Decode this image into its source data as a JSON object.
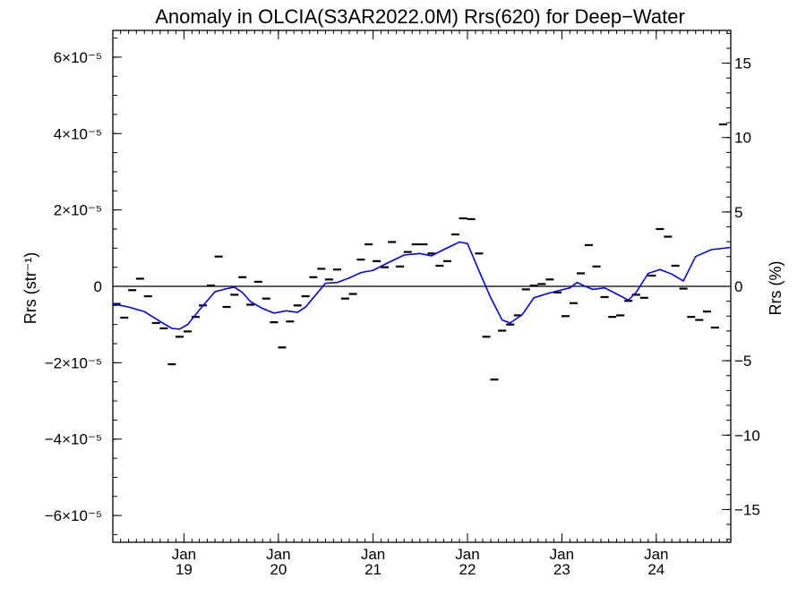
{
  "chart_data": {
    "type": "line",
    "title": "Anomaly in OLCIA(S3AR2022.0M) Rrs(620) for Deep−Water",
    "ylabel_left": "Rrs (str⁻¹)",
    "ylabel_right": "Rrs (%)",
    "x_range": [
      "2018-04-01",
      "2024-10-15"
    ],
    "y_range_left": [
      -6.7e-05,
      6.7e-05
    ],
    "y_range_right": [
      -17.2,
      17.2
    ],
    "left_ticks": [
      {
        "value": 6e-05,
        "label": "6×10⁻⁵"
      },
      {
        "value": 4e-05,
        "label": "4×10⁻⁵"
      },
      {
        "value": 2e-05,
        "label": "2×10⁻⁵"
      },
      {
        "value": 0,
        "label": "0"
      },
      {
        "value": -2e-05,
        "label": "−2×10⁻⁵"
      },
      {
        "value": -4e-05,
        "label": "−4×10⁻⁵"
      },
      {
        "value": -6e-05,
        "label": "−6×10⁻⁵"
      }
    ],
    "right_ticks": [
      {
        "value": 15,
        "label": "15"
      },
      {
        "value": 10,
        "label": "10"
      },
      {
        "value": 5,
        "label": "5"
      },
      {
        "value": 0,
        "label": "0"
      },
      {
        "value": -5,
        "label": "−5"
      },
      {
        "value": -10,
        "label": "−10"
      },
      {
        "value": -15,
        "label": "−15"
      }
    ],
    "x_ticks": [
      {
        "date": "2019-01-01",
        "month": "Jan",
        "year": "19"
      },
      {
        "date": "2020-01-01",
        "month": "Jan",
        "year": "20"
      },
      {
        "date": "2021-01-01",
        "month": "Jan",
        "year": "21"
      },
      {
        "date": "2022-01-01",
        "month": "Jan",
        "year": "22"
      },
      {
        "date": "2023-01-01",
        "month": "Jan",
        "year": "23"
      },
      {
        "date": "2024-01-01",
        "month": "Jan",
        "year": "24"
      }
    ],
    "series": [
      {
        "style": "dash-markers",
        "color": "#000000",
        "points": [
          [
            "2018-04-15",
            -4.6e-06
          ],
          [
            "2018-05-15",
            -8.2e-06
          ],
          [
            "2018-06-15",
            -1e-06
          ],
          [
            "2018-07-15",
            2e-06
          ],
          [
            "2018-08-15",
            -2.6e-06
          ],
          [
            "2018-09-15",
            -9.6e-06
          ],
          [
            "2018-10-15",
            -1.1e-05
          ],
          [
            "2018-11-15",
            -2.04e-05
          ],
          [
            "2018-12-15",
            -1.32e-05
          ],
          [
            "2019-01-15",
            -1.18e-05
          ],
          [
            "2019-02-15",
            -8e-06
          ],
          [
            "2019-03-15",
            -5e-06
          ],
          [
            "2019-04-15",
            2e-07
          ],
          [
            "2019-05-15",
            7.8e-06
          ],
          [
            "2019-06-15",
            -5.4e-06
          ],
          [
            "2019-07-15",
            -2.2e-06
          ],
          [
            "2019-08-15",
            2.4e-06
          ],
          [
            "2019-09-15",
            -4.8e-06
          ],
          [
            "2019-10-15",
            1.2e-06
          ],
          [
            "2019-11-15",
            -3.2e-06
          ],
          [
            "2019-12-15",
            -9.4e-06
          ],
          [
            "2020-01-15",
            -1.6e-05
          ],
          [
            "2020-02-15",
            -9.2e-06
          ],
          [
            "2020-03-15",
            -5e-06
          ],
          [
            "2020-04-15",
            -2.6e-06
          ],
          [
            "2020-05-15",
            2.4e-06
          ],
          [
            "2020-06-15",
            4.6e-06
          ],
          [
            "2020-07-15",
            1.8e-06
          ],
          [
            "2020-08-15",
            4.4e-06
          ],
          [
            "2020-09-15",
            -3.2e-06
          ],
          [
            "2020-10-15",
            -2e-06
          ],
          [
            "2020-11-15",
            7e-06
          ],
          [
            "2020-12-15",
            1.1e-05
          ],
          [
            "2021-01-15",
            6.6e-06
          ],
          [
            "2021-02-15",
            5e-06
          ],
          [
            "2021-03-15",
            1.16e-05
          ],
          [
            "2021-04-15",
            5.2e-06
          ],
          [
            "2021-05-15",
            9e-06
          ],
          [
            "2021-06-15",
            1.1e-05
          ],
          [
            "2021-07-15",
            1.1e-05
          ],
          [
            "2021-08-15",
            8.6e-06
          ],
          [
            "2021-09-15",
            5.4e-06
          ],
          [
            "2021-10-15",
            6.6e-06
          ],
          [
            "2021-11-15",
            1.36e-05
          ],
          [
            "2021-12-15",
            1.78e-05
          ],
          [
            "2022-01-15",
            1.76e-05
          ],
          [
            "2022-02-15",
            8.6e-06
          ],
          [
            "2022-03-15",
            -1.32e-05
          ],
          [
            "2022-04-15",
            -2.44e-05
          ],
          [
            "2022-05-15",
            -1.16e-05
          ],
          [
            "2022-06-15",
            -1e-05
          ],
          [
            "2022-07-15",
            -7.6e-06
          ],
          [
            "2022-08-15",
            -8e-07
          ],
          [
            "2022-09-15",
            2e-07
          ],
          [
            "2022-10-15",
            6e-07
          ],
          [
            "2022-11-15",
            1.8e-06
          ],
          [
            "2022-12-15",
            -1.6e-06
          ],
          [
            "2023-01-15",
            -7.8e-06
          ],
          [
            "2023-02-15",
            -4.4e-06
          ],
          [
            "2023-03-15",
            3.4e-06
          ],
          [
            "2023-04-15",
            1.08e-05
          ],
          [
            "2023-05-15",
            5.2e-06
          ],
          [
            "2023-06-15",
            -2.8e-06
          ],
          [
            "2023-07-15",
            -8e-06
          ],
          [
            "2023-08-15",
            -7.6e-06
          ],
          [
            "2023-09-15",
            -3.8e-06
          ],
          [
            "2023-10-15",
            -2.2e-06
          ],
          [
            "2023-11-15",
            -3e-06
          ],
          [
            "2023-12-15",
            2.8e-06
          ],
          [
            "2024-01-15",
            1.5e-05
          ],
          [
            "2024-02-15",
            1.3e-05
          ],
          [
            "2024-03-15",
            5.4e-06
          ],
          [
            "2024-04-15",
            -6e-07
          ],
          [
            "2024-05-15",
            -8e-06
          ],
          [
            "2024-06-15",
            -8.8e-06
          ],
          [
            "2024-07-15",
            -6.6e-06
          ],
          [
            "2024-08-15",
            -1.08e-05
          ],
          [
            "2024-09-15",
            4.24e-05
          ]
        ]
      },
      {
        "style": "line",
        "color": "#0000ff",
        "points": [
          [
            "2018-04-01",
            -4.6e-06
          ],
          [
            "2018-06-01",
            -5.4e-06
          ],
          [
            "2018-08-01",
            -6.6e-06
          ],
          [
            "2018-10-01",
            -9.2e-06
          ],
          [
            "2018-11-15",
            -1.1e-05
          ],
          [
            "2018-12-15",
            -1.12e-05
          ],
          [
            "2019-01-15",
            -1e-05
          ],
          [
            "2019-03-01",
            -6.2e-06
          ],
          [
            "2019-05-01",
            -1.4e-06
          ],
          [
            "2019-06-15",
            -6e-07
          ],
          [
            "2019-07-15",
            -2e-07
          ],
          [
            "2019-08-15",
            -1.6e-06
          ],
          [
            "2019-09-15",
            -4e-06
          ],
          [
            "2019-11-01",
            -5.8e-06
          ],
          [
            "2019-12-15",
            -7e-06
          ],
          [
            "2020-02-01",
            -6.4e-06
          ],
          [
            "2020-03-15",
            -6.8e-06
          ],
          [
            "2020-04-15",
            -5.4e-06
          ],
          [
            "2020-05-15",
            -3e-06
          ],
          [
            "2020-07-01",
            8e-07
          ],
          [
            "2020-08-15",
            1e-06
          ],
          [
            "2020-10-01",
            2.2e-06
          ],
          [
            "2020-11-15",
            3.6e-06
          ],
          [
            "2021-01-01",
            4.2e-06
          ],
          [
            "2021-03-01",
            6.2e-06
          ],
          [
            "2021-05-01",
            8.2e-06
          ],
          [
            "2021-07-01",
            8.6e-06
          ],
          [
            "2021-08-15",
            8e-06
          ],
          [
            "2021-10-01",
            9.6e-06
          ],
          [
            "2021-12-01",
            1.16e-05
          ],
          [
            "2022-01-01",
            1.12e-05
          ],
          [
            "2022-02-15",
            4e-06
          ],
          [
            "2022-04-01",
            -3e-06
          ],
          [
            "2022-05-15",
            -8.8e-06
          ],
          [
            "2022-06-15",
            -9.6e-06
          ],
          [
            "2022-08-01",
            -7.4e-06
          ],
          [
            "2022-09-15",
            -3e-06
          ],
          [
            "2022-11-01",
            -2e-06
          ],
          [
            "2022-12-15",
            -1.2e-06
          ],
          [
            "2023-02-01",
            -4e-07
          ],
          [
            "2023-03-01",
            1e-06
          ],
          [
            "2023-04-01",
            0.0
          ],
          [
            "2023-05-01",
            -8e-07
          ],
          [
            "2023-06-15",
            -4e-07
          ],
          [
            "2023-08-01",
            -2e-06
          ],
          [
            "2023-09-15",
            -3.6e-06
          ],
          [
            "2023-10-15",
            -1.6e-06
          ],
          [
            "2023-12-01",
            3.4e-06
          ],
          [
            "2024-01-15",
            4.4e-06
          ],
          [
            "2024-03-01",
            3.2e-06
          ],
          [
            "2024-04-15",
            1.4e-06
          ],
          [
            "2024-06-01",
            7.8e-06
          ],
          [
            "2024-08-01",
            9.6e-06
          ],
          [
            "2024-10-15",
            1.02e-05
          ]
        ]
      }
    ],
    "zero_line": true,
    "grid": false,
    "legend": "none"
  }
}
